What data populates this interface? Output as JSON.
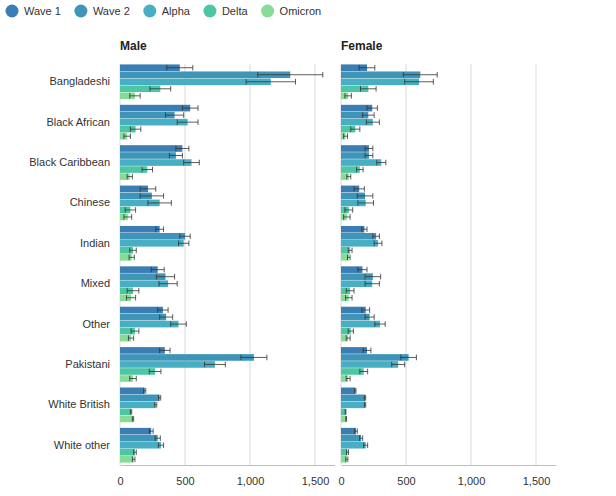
{
  "chart_data": [
    {
      "type": "bar",
      "title": "Male",
      "orientation": "horizontal",
      "grid": true,
      "legend": "top",
      "categories": [
        "Bangladeshi",
        "Black African",
        "Black Caribbean",
        "Chinese",
        "Indian",
        "Mixed",
        "Other",
        "Pakistani",
        "White British",
        "White other"
      ],
      "xlim": [
        0,
        1650
      ],
      "xticks": [
        0,
        500,
        {
          "value": 1000,
          "label": "1,000"
        },
        {
          "value": 1500,
          "label": "1,500"
        }
      ],
      "series": [
        {
          "name": "Wave 1",
          "color": "#3a7eb4",
          "values": [
            460,
            540,
            480,
            215,
            305,
            290,
            330,
            345,
            190,
            240
          ],
          "error": [
            100,
            60,
            50,
            60,
            30,
            50,
            40,
            40,
            8,
            15
          ]
        },
        {
          "name": "Wave 2",
          "color": "#3f95b8",
          "values": [
            1310,
            420,
            430,
            245,
            500,
            350,
            355,
            1030,
            305,
            290
          ],
          "error": [
            250,
            70,
            50,
            90,
            40,
            70,
            50,
            100,
            8,
            20
          ]
        },
        {
          "name": "Alpha",
          "color": "#48aec4",
          "values": [
            1160,
            520,
            550,
            305,
            490,
            370,
            450,
            730,
            275,
            315
          ],
          "error": [
            190,
            80,
            60,
            90,
            40,
            70,
            60,
            80,
            8,
            20
          ]
        },
        {
          "name": "Delta",
          "color": "#4ec6a6",
          "values": [
            310,
            120,
            210,
            80,
            100,
            100,
            115,
            270,
            85,
            115
          ],
          "error": [
            80,
            40,
            40,
            40,
            25,
            45,
            30,
            45,
            5,
            10
          ]
        },
        {
          "name": "Omicron",
          "color": "#86dc96",
          "values": [
            115,
            55,
            75,
            60,
            90,
            85,
            85,
            100,
            100,
            105
          ],
          "error": [
            40,
            25,
            20,
            30,
            20,
            35,
            20,
            25,
            5,
            10
          ]
        }
      ]
    },
    {
      "type": "bar",
      "title": "Female",
      "orientation": "horizontal",
      "grid": true,
      "tick_labels": "x",
      "categories": [
        "Bangladeshi",
        "Black African",
        "Black Caribbean",
        "Chinese",
        "Indian",
        "Mixed",
        "Other",
        "Pakistani",
        "White British",
        "White other"
      ],
      "xlim": [
        0,
        1650
      ],
      "xticks": [
        0,
        500,
        {
          "value": 1000,
          "label": "1,000"
        },
        {
          "value": 1500,
          "label": "1,500"
        }
      ],
      "series": [
        {
          "name": "Wave 1",
          "color": "#3a7eb4",
          "values": [
            200,
            240,
            215,
            140,
            180,
            165,
            190,
            200,
            110,
            115
          ],
          "error": [
            60,
            40,
            30,
            40,
            20,
            35,
            30,
            30,
            5,
            10
          ]
        },
        {
          "name": "Wave 2",
          "color": "#3f95b8",
          "values": [
            610,
            210,
            215,
            185,
            270,
            245,
            220,
            520,
            185,
            155
          ],
          "error": [
            130,
            45,
            30,
            60,
            25,
            60,
            35,
            60,
            5,
            12
          ]
        },
        {
          "name": "Alpha",
          "color": "#48aec4",
          "values": [
            600,
            245,
            310,
            190,
            285,
            240,
            300,
            440,
            185,
            190
          ],
          "error": [
            110,
            50,
            35,
            60,
            30,
            55,
            40,
            50,
            5,
            15
          ]
        },
        {
          "name": "Delta",
          "color": "#4ec6a6",
          "values": [
            210,
            110,
            145,
            60,
            70,
            70,
            75,
            175,
            35,
            50
          ],
          "error": [
            60,
            35,
            25,
            30,
            15,
            30,
            20,
            30,
            3,
            8
          ]
        },
        {
          "name": "Omicron",
          "color": "#86dc96",
          "values": [
            55,
            35,
            60,
            45,
            60,
            60,
            55,
            55,
            40,
            45
          ],
          "error": [
            25,
            15,
            15,
            25,
            10,
            25,
            15,
            15,
            3,
            8
          ]
        }
      ]
    }
  ]
}
